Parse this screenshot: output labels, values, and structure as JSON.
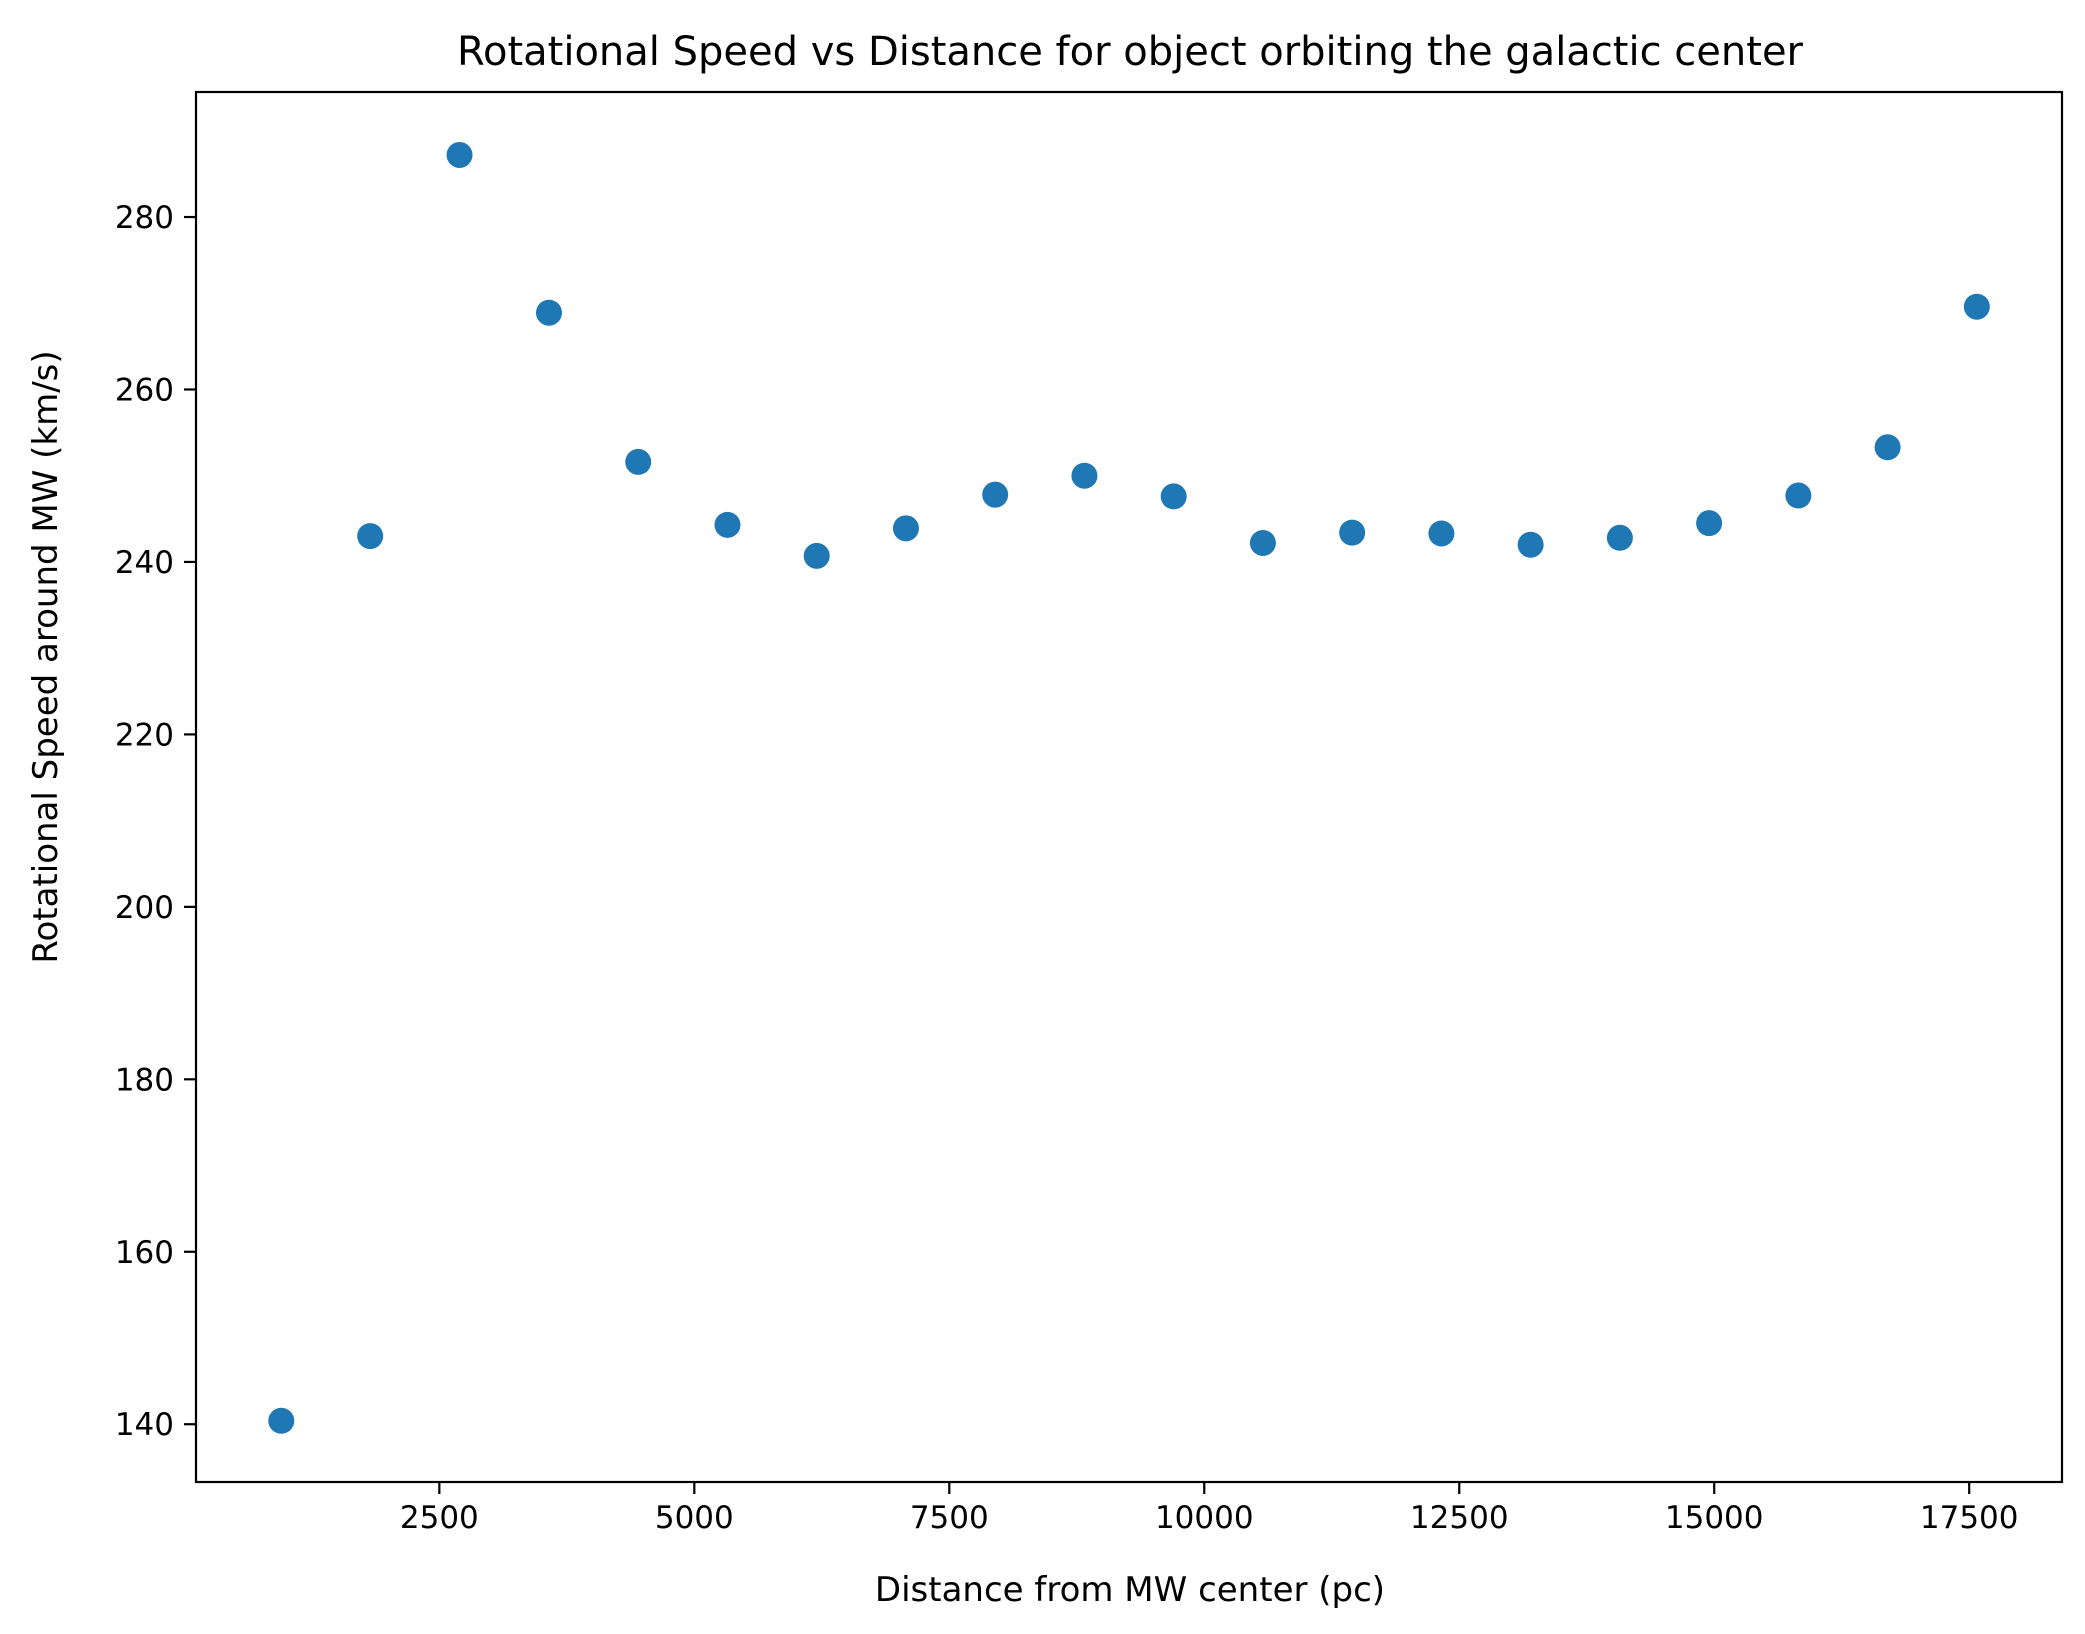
{
  "chart_data": {
    "type": "scatter",
    "title": "Rotational Speed vs Distance for object orbiting the galactic center",
    "xlabel": "Distance from MW center (pc)",
    "ylabel": "Rotational Speed around MW (km/s)",
    "xlim": [
      114,
      18410
    ],
    "ylim": [
      133.3,
      294.5
    ],
    "xticks": [
      2500,
      5000,
      7500,
      10000,
      12500,
      15000,
      17500
    ],
    "xtick_labels": [
      "2500",
      "5000",
      "7500",
      "10000",
      "12500",
      "15000",
      "17500"
    ],
    "yticks": [
      140,
      160,
      180,
      200,
      220,
      240,
      260,
      280
    ],
    "ytick_labels": [
      "140",
      "160",
      "180",
      "200",
      "220",
      "240",
      "260",
      "280"
    ],
    "grid": false,
    "legend": "none",
    "marker_color": "#1f77b4",
    "x": [
      950,
      1822,
      2698,
      3575,
      4450,
      5325,
      6200,
      7075,
      7950,
      8825,
      9700,
      10575,
      11450,
      12325,
      13200,
      14075,
      14950,
      15825,
      16700,
      17575
    ],
    "y": [
      140.4,
      243.0,
      287.2,
      268.9,
      251.6,
      244.3,
      240.7,
      243.9,
      247.8,
      250.0,
      247.6,
      242.2,
      243.4,
      243.3,
      242.0,
      242.8,
      244.5,
      247.7,
      253.3,
      269.6
    ]
  }
}
